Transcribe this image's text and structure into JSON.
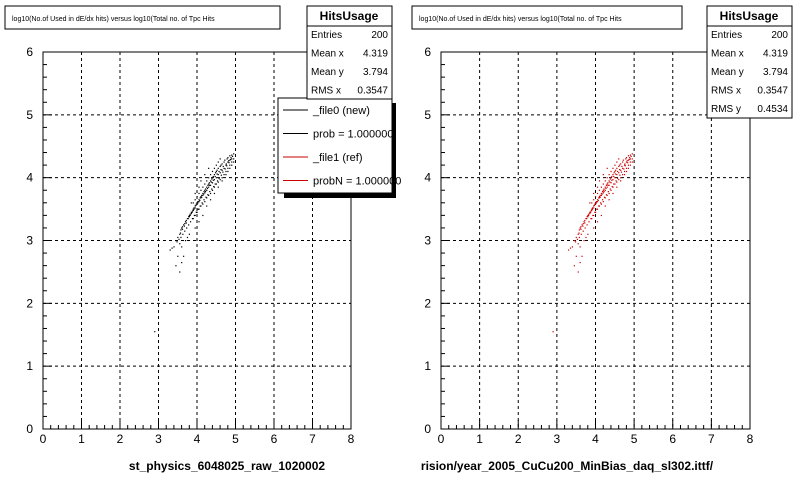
{
  "chart_data": [
    {
      "type": "scatter",
      "title": "log10(No.of Used in dE/dx hits) versus log10(Total no. of Tpc Hits",
      "xlabel": "st_physics_6048025_raw_1020002",
      "ylabel": "",
      "xlim": [
        0,
        8
      ],
      "ylim": [
        0,
        6
      ],
      "x_ticks": [
        "0",
        "1",
        "2",
        "3",
        "4",
        "5",
        "6",
        "7",
        "8"
      ],
      "y_ticks": [
        "0",
        "1",
        "2",
        "3",
        "4",
        "5",
        "6"
      ],
      "grid": true,
      "marker_color": "#000000",
      "stats": {
        "name": "HitsUsage",
        "rows": [
          {
            "label": "Entries",
            "value": "200"
          },
          {
            "label": "Mean x",
            "value": "4.319"
          },
          {
            "label": "Mean y",
            "value": "3.794"
          },
          {
            "label": "RMS x",
            "value": "0.3547"
          }
        ]
      },
      "legend": {
        "placement": "top-right",
        "entries": [
          {
            "label": "_file0 (new)",
            "color": "#000000"
          },
          {
            "label": "prob = 1.000000",
            "color": "#000000"
          },
          {
            "label": "_file1 (ref)",
            "color": "#cc0000"
          },
          {
            "label": "probN = 1.000000",
            "color": "#cc0000"
          }
        ]
      },
      "points": [
        [
          4.95,
          4.38
        ],
        [
          4.9,
          4.36
        ],
        [
          4.85,
          4.35
        ],
        [
          4.8,
          4.32
        ],
        [
          4.78,
          4.3
        ],
        [
          4.72,
          4.28
        ],
        [
          4.7,
          4.25
        ],
        [
          4.65,
          4.22
        ],
        [
          4.62,
          4.2
        ],
        [
          4.6,
          4.18
        ],
        [
          4.55,
          4.15
        ],
        [
          4.52,
          4.12
        ],
        [
          4.5,
          4.1
        ],
        [
          4.48,
          4.08
        ],
        [
          4.45,
          4.05
        ],
        [
          4.42,
          4.02
        ],
        [
          4.4,
          4.0
        ],
        [
          4.38,
          3.98
        ],
        [
          4.35,
          3.95
        ],
        [
          4.32,
          3.92
        ],
        [
          4.3,
          3.9
        ],
        [
          4.28,
          3.88
        ],
        [
          4.25,
          3.85
        ],
        [
          4.22,
          3.82
        ],
        [
          4.2,
          3.8
        ],
        [
          4.18,
          3.78
        ],
        [
          4.15,
          3.75
        ],
        [
          4.12,
          3.72
        ],
        [
          4.1,
          3.7
        ],
        [
          4.08,
          3.68
        ],
        [
          4.05,
          3.65
        ],
        [
          4.02,
          3.62
        ],
        [
          4.0,
          3.6
        ],
        [
          3.98,
          3.58
        ],
        [
          3.95,
          3.55
        ],
        [
          3.92,
          3.52
        ],
        [
          3.9,
          3.5
        ],
        [
          3.88,
          3.47
        ],
        [
          3.85,
          3.45
        ],
        [
          3.82,
          3.42
        ],
        [
          3.8,
          3.4
        ],
        [
          3.78,
          3.38
        ],
        [
          3.75,
          3.35
        ],
        [
          3.72,
          3.32
        ],
        [
          3.7,
          3.3
        ],
        [
          3.68,
          3.27
        ],
        [
          3.65,
          3.25
        ],
        [
          3.62,
          3.22
        ],
        [
          3.6,
          3.2
        ],
        [
          3.58,
          3.17
        ],
        [
          4.9,
          4.3
        ],
        [
          4.85,
          4.28
        ],
        [
          4.8,
          4.25
        ],
        [
          4.75,
          4.2
        ],
        [
          4.7,
          4.15
        ],
        [
          4.65,
          4.12
        ],
        [
          4.6,
          4.08
        ],
        [
          4.55,
          4.05
        ],
        [
          4.5,
          4.0
        ],
        [
          4.45,
          3.97
        ],
        [
          4.4,
          3.92
        ],
        [
          4.35,
          3.88
        ],
        [
          4.3,
          3.85
        ],
        [
          4.25,
          3.8
        ],
        [
          4.2,
          3.76
        ],
        [
          4.15,
          3.72
        ],
        [
          4.1,
          3.68
        ],
        [
          4.05,
          3.62
        ],
        [
          4.0,
          3.58
        ],
        [
          3.95,
          3.52
        ],
        [
          3.9,
          3.48
        ],
        [
          3.85,
          3.43
        ],
        [
          3.8,
          3.38
        ],
        [
          4.95,
          4.3
        ],
        [
          4.9,
          4.25
        ],
        [
          4.85,
          4.2
        ],
        [
          4.8,
          4.15
        ],
        [
          4.75,
          4.1
        ],
        [
          4.7,
          4.05
        ],
        [
          4.65,
          4.0
        ],
        [
          4.6,
          3.97
        ],
        [
          4.55,
          3.93
        ],
        [
          4.5,
          3.9
        ],
        [
          4.45,
          3.85
        ],
        [
          4.4,
          3.8
        ],
        [
          4.35,
          3.75
        ],
        [
          4.3,
          3.72
        ],
        [
          4.25,
          3.68
        ],
        [
          4.2,
          3.62
        ],
        [
          4.15,
          3.58
        ],
        [
          4.1,
          3.55
        ],
        [
          4.05,
          3.5
        ],
        [
          4.0,
          3.45
        ],
        [
          3.95,
          3.4
        ],
        [
          3.9,
          3.35
        ],
        [
          4.88,
          4.32
        ],
        [
          4.82,
          4.27
        ],
        [
          4.76,
          4.22
        ],
        [
          4.68,
          4.18
        ],
        [
          4.62,
          4.13
        ],
        [
          4.57,
          4.1
        ],
        [
          4.52,
          4.06
        ],
        [
          4.47,
          4.02
        ],
        [
          4.42,
          3.96
        ],
        [
          4.37,
          3.93
        ],
        [
          4.32,
          3.88
        ],
        [
          4.27,
          3.83
        ],
        [
          4.22,
          3.78
        ],
        [
          4.17,
          3.74
        ],
        [
          4.12,
          3.69
        ],
        [
          4.07,
          3.64
        ],
        [
          4.02,
          3.6
        ],
        [
          3.97,
          3.56
        ],
        [
          3.92,
          3.5
        ],
        [
          3.87,
          3.45
        ],
        [
          3.82,
          3.4
        ],
        [
          3.77,
          3.35
        ],
        [
          3.72,
          3.28
        ],
        [
          3.67,
          3.23
        ],
        [
          3.62,
          3.18
        ],
        [
          3.57,
          3.12
        ],
        [
          3.55,
          3.1
        ],
        [
          3.5,
          3.05
        ],
        [
          3.45,
          3.0
        ],
        [
          4.6,
          4.3
        ],
        [
          4.55,
          4.25
        ],
        [
          4.5,
          4.2
        ],
        [
          4.45,
          4.15
        ],
        [
          4.4,
          4.1
        ],
        [
          4.35,
          4.05
        ],
        [
          4.3,
          4.0
        ],
        [
          4.25,
          3.95
        ],
        [
          4.2,
          3.9
        ],
        [
          4.15,
          3.85
        ],
        [
          4.1,
          3.8
        ],
        [
          4.05,
          3.75
        ],
        [
          4.0,
          3.7
        ],
        [
          3.95,
          3.65
        ],
        [
          3.9,
          3.6
        ],
        [
          4.92,
          4.34
        ],
        [
          4.87,
          4.29
        ],
        [
          4.83,
          4.24
        ],
        [
          4.77,
          4.19
        ],
        [
          4.73,
          4.14
        ],
        [
          4.67,
          4.09
        ],
        [
          4.63,
          4.04
        ],
        [
          4.57,
          3.99
        ],
        [
          4.53,
          3.95
        ],
        [
          4.47,
          3.9
        ],
        [
          4.43,
          3.86
        ],
        [
          4.38,
          3.82
        ],
        [
          4.33,
          3.78
        ],
        [
          4.28,
          3.73
        ],
        [
          4.23,
          3.69
        ],
        [
          4.18,
          3.65
        ],
        [
          4.13,
          3.6
        ],
        [
          4.08,
          3.55
        ],
        [
          4.03,
          3.5
        ],
        [
          3.98,
          3.45
        ],
        [
          3.93,
          3.4
        ],
        [
          3.88,
          3.35
        ],
        [
          3.83,
          3.3
        ],
        [
          3.78,
          3.25
        ],
        [
          3.73,
          3.2
        ],
        [
          3.68,
          3.15
        ],
        [
          3.63,
          3.1
        ],
        [
          3.58,
          3.05
        ],
        [
          3.53,
          3.02
        ],
        [
          3.48,
          2.98
        ],
        [
          3.4,
          2.9
        ],
        [
          3.35,
          2.88
        ],
        [
          3.3,
          2.85
        ],
        [
          3.55,
          2.95
        ],
        [
          3.6,
          2.9
        ],
        [
          3.5,
          2.75
        ],
        [
          3.6,
          2.65
        ],
        [
          3.55,
          2.5
        ],
        [
          3.45,
          2.6
        ],
        [
          3.65,
          2.75
        ],
        [
          3.7,
          3.0
        ],
        [
          3.8,
          3.1
        ],
        [
          3.75,
          3.05
        ],
        [
          3.95,
          3.2
        ],
        [
          4.05,
          3.3
        ],
        [
          4.15,
          3.4
        ],
        [
          4.25,
          3.55
        ],
        [
          4.35,
          3.65
        ],
        [
          4.45,
          3.75
        ],
        [
          4.55,
          3.85
        ],
        [
          4.65,
          3.95
        ],
        [
          4.75,
          4.05
        ],
        [
          4.8,
          4.1
        ],
        [
          4.85,
          4.15
        ],
        [
          4.9,
          4.2
        ],
        [
          4.95,
          4.25
        ],
        [
          2.9,
          1.55
        ],
        [
          3.85,
          3.6
        ],
        [
          3.95,
          3.75
        ],
        [
          4.05,
          3.85
        ],
        [
          4.1,
          3.95
        ],
        [
          4.2,
          4.05
        ],
        [
          4.3,
          4.15
        ]
      ]
    },
    {
      "type": "scatter",
      "title": "log10(No.of Used in dE/dx hits) versus log10(Total no. of Tpc Hits",
      "xlabel": "rision/year_2005_CuCu200_MinBias_daq_sl302.ittf/",
      "ylabel": "",
      "xlim": [
        0,
        8
      ],
      "ylim": [
        0,
        6
      ],
      "x_ticks": [
        "0",
        "1",
        "2",
        "3",
        "4",
        "5",
        "6",
        "7",
        "8"
      ],
      "y_ticks": [
        "0",
        "1",
        "2",
        "3",
        "4",
        "5",
        "6"
      ],
      "grid": true,
      "marker_color": "#cc0000",
      "stats": {
        "name": "HitsUsage",
        "rows": [
          {
            "label": "Entries",
            "value": "200"
          },
          {
            "label": "Mean x",
            "value": "4.319"
          },
          {
            "label": "Mean y",
            "value": "3.794"
          },
          {
            "label": "RMS x",
            "value": "0.3547"
          },
          {
            "label": "RMS y",
            "value": "0.4534"
          }
        ]
      }
    }
  ]
}
